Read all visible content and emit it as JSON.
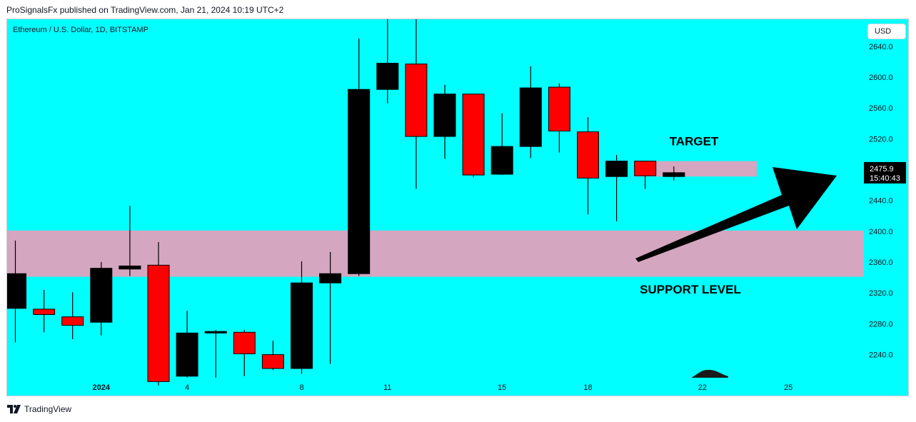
{
  "header": {
    "publish_line": "ProSignalsFx published on TradingView.com, Jan 21, 2024 10:19 UTC+2"
  },
  "chart_header": {
    "symbol_line": "Ethereum / U.S. Dollar, 1D, BITSTAMP",
    "currency": "USD"
  },
  "footer": {
    "brand": "TradingView"
  },
  "colors": {
    "background": "#00ffff",
    "bullish": "#000000",
    "bearish": "#ff0000",
    "zone": "#d4a6bf",
    "annotation": "#000000"
  },
  "chart_data": {
    "type": "candlestick",
    "ylim": [
      2210,
      2675
    ],
    "yticks": [
      2240,
      2280,
      2320,
      2360,
      2400,
      2440,
      2480,
      2520,
      2560,
      2600,
      2640
    ],
    "ytick_labels": [
      "2240.0",
      "2280.0",
      "2320.0",
      "2360.0",
      "2400.0",
      "2440.0",
      "2480.0",
      "2520.0",
      "2560.0",
      "2600.0",
      "2640.0"
    ],
    "xticks": [
      {
        "index": 3,
        "label": "2024"
      },
      {
        "index": 6,
        "label": "4"
      },
      {
        "index": 10,
        "label": "8"
      },
      {
        "index": 13,
        "label": "11"
      },
      {
        "index": 17,
        "label": "15"
      },
      {
        "index": 20,
        "label": "18"
      },
      {
        "index": 24,
        "label": "22"
      },
      {
        "index": 27,
        "label": "25"
      }
    ],
    "candles": [
      {
        "i": 0,
        "o": 2300,
        "h": 2388,
        "l": 2256,
        "c": 2345
      },
      {
        "i": 1,
        "o": 2299,
        "h": 2324,
        "l": 2269,
        "c": 2292
      },
      {
        "i": 2,
        "o": 2289,
        "h": 2321,
        "l": 2260,
        "c": 2278
      },
      {
        "i": 3,
        "o": 2282,
        "h": 2360,
        "l": 2265,
        "c": 2352
      },
      {
        "i": 4,
        "o": 2351,
        "h": 2433,
        "l": 2342,
        "c": 2355
      },
      {
        "i": 5,
        "o": 2356,
        "h": 2386,
        "l": 2200,
        "c": 2205
      },
      {
        "i": 6,
        "o": 2212,
        "h": 2297,
        "l": 2210,
        "c": 2268
      },
      {
        "i": 7,
        "o": 2268,
        "h": 2272,
        "l": 2210,
        "c": 2270
      },
      {
        "i": 8,
        "o": 2269,
        "h": 2272,
        "l": 2212,
        "c": 2241
      },
      {
        "i": 9,
        "o": 2240,
        "h": 2258,
        "l": 2220,
        "c": 2222
      },
      {
        "i": 10,
        "o": 2222,
        "h": 2361,
        "l": 2215,
        "c": 2333
      },
      {
        "i": 11,
        "o": 2333,
        "h": 2373,
        "l": 2228,
        "c": 2345
      },
      {
        "i": 12,
        "o": 2345,
        "h": 2650,
        "l": 2342,
        "c": 2584
      },
      {
        "i": 13,
        "o": 2584,
        "h": 2700,
        "l": 2566,
        "c": 2618
      },
      {
        "i": 14,
        "o": 2617,
        "h": 2705,
        "l": 2455,
        "c": 2523
      },
      {
        "i": 15,
        "o": 2523,
        "h": 2590,
        "l": 2494,
        "c": 2578
      },
      {
        "i": 16,
        "o": 2578,
        "h": 2578,
        "l": 2470,
        "c": 2473
      },
      {
        "i": 17,
        "o": 2474,
        "h": 2553,
        "l": 2473,
        "c": 2510
      },
      {
        "i": 18,
        "o": 2510,
        "h": 2614,
        "l": 2495,
        "c": 2586
      },
      {
        "i": 19,
        "o": 2587,
        "h": 2592,
        "l": 2502,
        "c": 2530
      },
      {
        "i": 20,
        "o": 2529,
        "h": 2548,
        "l": 2422,
        "c": 2469
      },
      {
        "i": 21,
        "o": 2471,
        "h": 2499,
        "l": 2413,
        "c": 2491
      },
      {
        "i": 22,
        "o": 2491,
        "h": 2491,
        "l": 2455,
        "c": 2472
      },
      {
        "i": 23,
        "o": 2471,
        "h": 2484,
        "l": 2466,
        "c": 2476
      }
    ],
    "annotations": {
      "support_zone": {
        "y0": 2341,
        "y1": 2401,
        "label": "SUPPORT LEVEL"
      },
      "target_zone": {
        "y0": 2471,
        "y1": 2491,
        "label": "TARGET"
      }
    },
    "last_price": {
      "value": 2475.9,
      "label": "2475.9",
      "countdown": "15:40:43"
    }
  }
}
